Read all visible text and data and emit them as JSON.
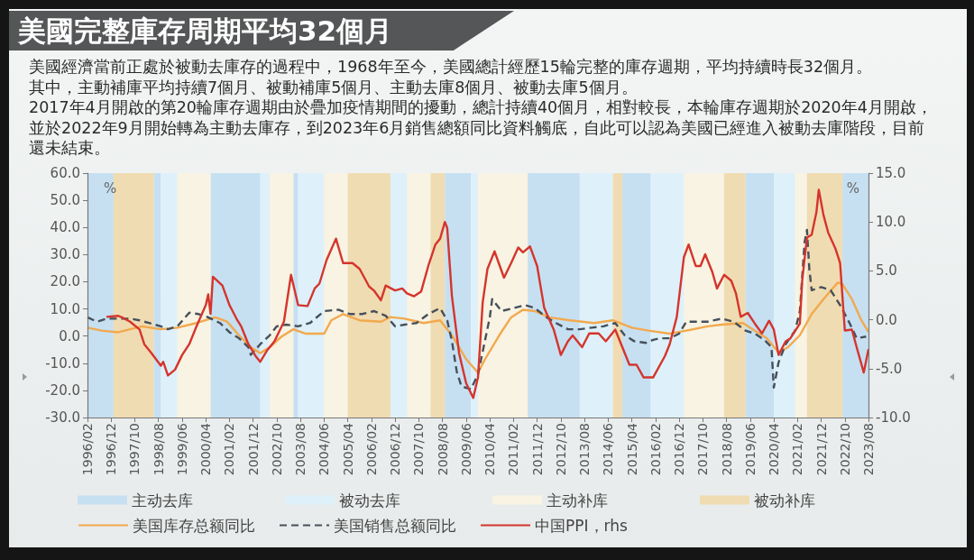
{
  "chart_data": {
    "type": "line",
    "title": "美國完整庫存周期平均32個月",
    "subtitle": "美國經濟當前正處於被動去庫存的過程中，1968年至今，美國總計經歷15輪完整的庫存週期，平均持續時長32個月。",
    "annotations": [
      "其中，主動補庫平均持續7個月、被動補庫5個月、主動去庫8個月、被動去庫5個月。",
      "2017年4月開啟的第20輪庫存週期由於疊加疫情期間的擾動，總計持續40個月，相對較長，本輪庫存週期於2020年4月開啟，並於2022年9月開始轉為主動去庫存，到2023年6月銷售總額同比資料觸底，自此可以認為美國已經進入被動去庫階段，目前還未結束。"
    ],
    "ylabel": "%",
    "y2label": "%",
    "xlim": [
      "1996-02",
      "2023-08"
    ],
    "xticks": [
      {
        "value": "1996-02",
        "label": "1996/02"
      },
      {
        "value": "1996-12",
        "label": "1996/12"
      },
      {
        "value": "1997-10",
        "label": "1997/10"
      },
      {
        "value": "1998-08",
        "label": "1998/08"
      },
      {
        "value": "1999-06",
        "label": "1999/06"
      },
      {
        "value": "2000-04",
        "label": "2000/04"
      },
      {
        "value": "2001-02",
        "label": "2001/02"
      },
      {
        "value": "2001-12",
        "label": "2001/12"
      },
      {
        "value": "2002-10",
        "label": "2002/10"
      },
      {
        "value": "2003-08",
        "label": "2003/08"
      },
      {
        "value": "2004-06",
        "label": "2004/06"
      },
      {
        "value": "2005-04",
        "label": "2005/04"
      },
      {
        "value": "2006-02",
        "label": "2006/02"
      },
      {
        "value": "2006-12",
        "label": "2006/12"
      },
      {
        "value": "2007-10",
        "label": "2007/10"
      },
      {
        "value": "2008-08",
        "label": "2008/08"
      },
      {
        "value": "2009-06",
        "label": "2009/06"
      },
      {
        "value": "2010-04",
        "label": "2010/04"
      },
      {
        "value": "2011-02",
        "label": "2011/02"
      },
      {
        "value": "2011-12",
        "label": "2011/12"
      },
      {
        "value": "2012-10",
        "label": "2012/10"
      },
      {
        "value": "2013-08",
        "label": "2013/08"
      },
      {
        "value": "2014-06",
        "label": "2014/06"
      },
      {
        "value": "2015-04",
        "label": "2015/04"
      },
      {
        "value": "2016-02",
        "label": "2016/02"
      },
      {
        "value": "2016-12",
        "label": "2016/12"
      },
      {
        "value": "2017-10",
        "label": "2017/10"
      },
      {
        "value": "2018-08",
        "label": "2018/08"
      },
      {
        "value": "2019-06",
        "label": "2019/06"
      },
      {
        "value": "2020-04",
        "label": "2020/04"
      },
      {
        "value": "2021-02",
        "label": "2021/02"
      },
      {
        "value": "2021-12",
        "label": "2021/12"
      },
      {
        "value": "2022-10",
        "label": "2022/10"
      },
      {
        "value": "2023-08",
        "label": "2023/08"
      }
    ],
    "ylim": [
      -30,
      60
    ],
    "yticks": [
      {
        "value": -30,
        "label": "-30.0"
      },
      {
        "value": -20,
        "label": "-20.0"
      },
      {
        "value": -10,
        "label": "-10.0"
      },
      {
        "value": 0,
        "label": "0.0"
      },
      {
        "value": 10,
        "label": "10.0"
      },
      {
        "value": 20,
        "label": "20.0"
      },
      {
        "value": 30,
        "label": "30.0"
      },
      {
        "value": 40,
        "label": "40.0"
      },
      {
        "value": 50,
        "label": "50.0"
      },
      {
        "value": 60,
        "label": "60.0"
      }
    ],
    "y2lim": [
      -10,
      15
    ],
    "y2ticks": [
      {
        "value": -10,
        "label": "-10.0"
      },
      {
        "value": -5,
        "label": "-5.0"
      },
      {
        "value": 0,
        "label": "0.0"
      },
      {
        "value": 5,
        "label": "5.0"
      },
      {
        "value": 10,
        "label": "10.0"
      },
      {
        "value": 15,
        "label": "15.0"
      }
    ],
    "grid": false,
    "legend": "bottom",
    "bands": [
      {
        "axis": "x",
        "from": "1996-02",
        "to": "1997-01",
        "label": "主动去库",
        "color": "#c6e0f2"
      },
      {
        "axis": "x",
        "from": "1998-06",
        "to": "1998-09",
        "color": "#c6e0f2"
      },
      {
        "axis": "x",
        "from": "2000-06",
        "to": "2002-03",
        "color": "#c6e0f2"
      },
      {
        "axis": "x",
        "from": "2003-05",
        "to": "2003-07",
        "color": "#c6e0f2"
      },
      {
        "axis": "x",
        "from": "2008-09",
        "to": "2009-08",
        "color": "#c6e0f2"
      },
      {
        "axis": "x",
        "from": "2011-08",
        "to": "2013-06",
        "color": "#c6e0f2"
      },
      {
        "axis": "x",
        "from": "2014-12",
        "to": "2015-12",
        "color": "#c6e0f2"
      },
      {
        "axis": "x",
        "from": "2019-04",
        "to": "2020-04",
        "color": "#c6e0f2"
      },
      {
        "axis": "x",
        "from": "2022-09",
        "to": "2023-08",
        "color": "#c6e0f2"
      },
      {
        "axis": "x",
        "from": "1998-09",
        "to": "1999-04",
        "label": "被动去库",
        "color": "#def1fa"
      },
      {
        "axis": "x",
        "from": "2002-03",
        "to": "2002-07",
        "color": "#def1fa"
      },
      {
        "axis": "x",
        "from": "2003-07",
        "to": "2004-06",
        "color": "#def1fa"
      },
      {
        "axis": "x",
        "from": "2006-10",
        "to": "2007-05",
        "color": "#def1fa"
      },
      {
        "axis": "x",
        "from": "2009-08",
        "to": "2009-11",
        "color": "#def1fa"
      },
      {
        "axis": "x",
        "from": "2013-06",
        "to": "2014-08",
        "color": "#def1fa"
      },
      {
        "axis": "x",
        "from": "2015-12",
        "to": "2017-02",
        "color": "#def1fa"
      },
      {
        "axis": "x",
        "from": "2020-04",
        "to": "2021-01",
        "color": "#def1fa"
      },
      {
        "axis": "x",
        "from": "1999-04",
        "to": "2000-06",
        "label": "主动补库",
        "color": "#f8f3e2"
      },
      {
        "axis": "x",
        "from": "2002-07",
        "to": "2003-05",
        "color": "#f8f3e2"
      },
      {
        "axis": "x",
        "from": "2004-06",
        "to": "2005-04",
        "color": "#f8f3e2"
      },
      {
        "axis": "x",
        "from": "2007-05",
        "to": "2008-03",
        "color": "#f8f3e2"
      },
      {
        "axis": "x",
        "from": "2009-11",
        "to": "2011-08",
        "color": "#f8f3e2"
      },
      {
        "axis": "x",
        "from": "2017-02",
        "to": "2018-07",
        "color": "#f8f3e2"
      },
      {
        "axis": "x",
        "from": "2021-01",
        "to": "2021-06",
        "color": "#f8f3e2"
      },
      {
        "axis": "x",
        "from": "1997-01",
        "to": "1998-06",
        "label": "被动补库",
        "color": "#f0dcb2"
      },
      {
        "axis": "x",
        "from": "2005-04",
        "to": "2006-10",
        "color": "#f0dcb2"
      },
      {
        "axis": "x",
        "from": "2008-03",
        "to": "2008-09",
        "color": "#f0dcb2"
      },
      {
        "axis": "x",
        "from": "2014-08",
        "to": "2014-12",
        "color": "#f0dcb2"
      },
      {
        "axis": "x",
        "from": "2018-07",
        "to": "2019-04",
        "color": "#f0dcb2"
      },
      {
        "axis": "x",
        "from": "2021-06",
        "to": "2022-09",
        "color": "#f0dcb2"
      }
    ],
    "series": [
      {
        "name": "美国库存总额同比",
        "color": "#f2a94e",
        "x": [
          "1996-02",
          "1996-08",
          "1997-03",
          "1997-08",
          "1998-01",
          "1998-09",
          "1999-04",
          "1999-12",
          "2000-08",
          "2001-01",
          "2001-06",
          "2001-11",
          "2002-03",
          "2002-07",
          "2002-12",
          "2003-05",
          "2003-10",
          "2004-03",
          "2004-06",
          "2004-09",
          "2005-02",
          "2005-09",
          "2006-06",
          "2006-10",
          "2007-04",
          "2007-12",
          "2008-07",
          "2008-12",
          "2009-06",
          "2009-11",
          "2010-02",
          "2010-08",
          "2011-01",
          "2011-06",
          "2011-11",
          "2012-05",
          "2013-02",
          "2013-12",
          "2014-08",
          "2015-04",
          "2015-11",
          "2016-08",
          "2017-03",
          "2017-12",
          "2018-06",
          "2019-03",
          "2019-08",
          "2020-01",
          "2020-06",
          "2020-10",
          "2021-03",
          "2021-08",
          "2022-01",
          "2022-07",
          "2022-09",
          "2023-01",
          "2023-05",
          "2023-08"
        ],
        "values": [
          3.1,
          2.0,
          1.4,
          2.5,
          3.6,
          2.5,
          3.1,
          4.8,
          6.9,
          5.3,
          0.3,
          -4.1,
          -6.3,
          -4.1,
          -0.2,
          2.5,
          0.9,
          0.9,
          0.9,
          5.8,
          8.1,
          5.8,
          5.3,
          7.0,
          6.4,
          4.8,
          5.8,
          0.3,
          -8.5,
          -13.5,
          -8.5,
          0.3,
          6.9,
          9.7,
          9.2,
          6.9,
          5.8,
          4.8,
          5.8,
          3.1,
          2.0,
          0.9,
          2.0,
          3.6,
          4.2,
          4.8,
          2.0,
          -0.8,
          -6.0,
          -4.1,
          0.3,
          8.1,
          13.6,
          19.7,
          19.1,
          13.6,
          5.8,
          1.5
        ]
      },
      {
        "name": "美国销售总额同比",
        "color": "#46505a",
        "line_style": "dashed",
        "x": [
          "1996-02",
          "1996-06",
          "1996-10",
          "1997-03",
          "1997-08",
          "1997-12",
          "1998-04",
          "1998-09",
          "1998-12",
          "1999-04",
          "1999-09",
          "2000-01",
          "2000-05",
          "2000-10",
          "2001-02",
          "2001-06",
          "2001-10",
          "2001-11",
          "2002-03",
          "2002-07",
          "2002-10",
          "2003-02",
          "2003-07",
          "2003-12",
          "2004-06",
          "2004-12",
          "2005-05",
          "2005-10",
          "2006-03",
          "2006-08",
          "2006-12",
          "2007-04",
          "2007-09",
          "2008-02",
          "2008-07",
          "2008-10",
          "2008-12",
          "2009-02",
          "2009-04",
          "2009-08",
          "2009-11",
          "2010-04",
          "2010-05",
          "2010-09",
          "2011-02",
          "2011-07",
          "2011-11",
          "2012-04",
          "2012-08",
          "2013-01",
          "2013-06",
          "2013-11",
          "2014-04",
          "2014-09",
          "2015-01",
          "2015-05",
          "2015-10",
          "2016-01",
          "2016-04",
          "2016-08",
          "2016-12",
          "2017-03",
          "2017-07",
          "2017-12",
          "2018-06",
          "2018-11",
          "2019-04",
          "2019-08",
          "2019-12",
          "2020-03",
          "2020-04",
          "2020-06",
          "2020-09",
          "2021-01",
          "2021-03",
          "2021-05",
          "2021-06",
          "2021-07",
          "2021-08",
          "2021-12",
          "2022-04",
          "2022-08",
          "2022-12",
          "2023-03",
          "2023-07"
        ],
        "values": [
          6.9,
          5.3,
          6.4,
          6.4,
          6.4,
          5.8,
          4.8,
          3.6,
          2.5,
          3.6,
          8.6,
          8.1,
          6.9,
          4.8,
          1.4,
          -0.8,
          -4.1,
          -6.9,
          -3.0,
          0.3,
          3.6,
          4.2,
          3.6,
          4.8,
          9.2,
          9.7,
          8.1,
          8.1,
          9.2,
          7.5,
          3.6,
          4.2,
          4.8,
          8.1,
          10.3,
          5.8,
          -1.9,
          -13.0,
          -18.5,
          -19.6,
          -14.1,
          6.9,
          13.6,
          9.2,
          10.3,
          11.4,
          10.3,
          6.9,
          4.8,
          2.5,
          2.5,
          3.1,
          3.6,
          4.8,
          0.3,
          -1.9,
          -2.5,
          -1.4,
          -0.8,
          -0.8,
          0.9,
          5.3,
          5.3,
          5.3,
          6.4,
          5.3,
          2.0,
          0.9,
          -1.4,
          -4.1,
          -19.0,
          -9.7,
          -3.0,
          2.0,
          9.2,
          34.6,
          39.1,
          24.7,
          16.9,
          18.0,
          16.9,
          11.4,
          4.8,
          -0.8,
          -0.2
        ]
      },
      {
        "name": "中国PPI，rhs",
        "color": "#d4352d",
        "axis": "y2",
        "x": [
          "1996-10",
          "1997-03",
          "1997-05",
          "1997-08",
          "1997-12",
          "1998-02",
          "1998-05",
          "1998-09",
          "1998-10",
          "1998-12",
          "1999-03",
          "1999-06",
          "1999-09",
          "1999-12",
          "2000-04",
          "2000-05",
          "2000-06",
          "2000-07",
          "2000-11",
          "2001-02",
          "2001-05",
          "2001-07",
          "2001-10",
          "2002-01",
          "2002-03",
          "2002-06",
          "2002-09",
          "2003-01",
          "2003-04",
          "2003-07",
          "2003-11",
          "2004-02",
          "2004-04",
          "2004-07",
          "2004-11",
          "2005-02",
          "2005-06",
          "2005-09",
          "2006-01",
          "2006-03",
          "2006-06",
          "2006-08",
          "2006-12",
          "2007-03",
          "2007-05",
          "2007-08",
          "2007-11",
          "2008-02",
          "2008-05",
          "2008-07",
          "2008-09",
          "2008-10",
          "2008-12",
          "2009-03",
          "2009-06",
          "2009-09",
          "2009-11",
          "2010-01",
          "2010-03",
          "2010-06",
          "2010-10",
          "2011-01",
          "2011-04",
          "2011-06",
          "2011-09",
          "2011-12",
          "2012-03",
          "2012-07",
          "2012-10",
          "2013-01",
          "2013-03",
          "2013-07",
          "2013-10",
          "2014-02",
          "2014-05",
          "2014-09",
          "2014-12",
          "2015-03",
          "2015-06",
          "2015-09",
          "2016-01",
          "2016-06",
          "2016-08",
          "2016-11",
          "2017-02",
          "2017-04",
          "2017-07",
          "2017-09",
          "2017-11",
          "2018-02",
          "2018-04",
          "2018-07",
          "2018-10",
          "2018-12",
          "2019-02",
          "2019-05",
          "2019-08",
          "2019-11",
          "2020-02",
          "2020-04",
          "2020-06",
          "2020-09",
          "2020-11",
          "2021-03",
          "2021-04",
          "2021-06",
          "2021-08",
          "2021-10",
          "2021-11",
          "2022-01",
          "2022-03",
          "2022-06",
          "2022-08",
          "2022-09",
          "2022-10",
          "2023-01",
          "2023-03",
          "2023-06",
          "2023-08"
        ],
        "values": [
          0.3,
          0.4,
          0.2,
          -0.2,
          -1.0,
          -2.5,
          -3.4,
          -4.7,
          -4.3,
          -5.7,
          -5.1,
          -3.6,
          -2.5,
          -0.7,
          1.5,
          2.6,
          0.6,
          4.4,
          3.5,
          1.5,
          0.1,
          -0.7,
          -2.5,
          -3.7,
          -4.3,
          -3.1,
          -2.2,
          -0.2,
          4.6,
          1.5,
          1.4,
          3.2,
          3.7,
          6.1,
          8.3,
          5.8,
          5.8,
          5.2,
          3.4,
          3.0,
          2.0,
          3.5,
          3.0,
          3.2,
          2.7,
          2.4,
          2.9,
          5.5,
          7.7,
          8.3,
          10.0,
          9.4,
          2.4,
          -3.4,
          -6.5,
          -8.0,
          -5.9,
          1.8,
          5.2,
          7.0,
          4.3,
          5.8,
          7.4,
          6.9,
          7.5,
          5.5,
          1.2,
          -1.0,
          -3.6,
          -2.2,
          -1.6,
          -2.8,
          -1.4,
          -1.4,
          -2.2,
          -1.0,
          -2.8,
          -4.6,
          -4.6,
          -5.9,
          -5.9,
          -3.7,
          -2.5,
          0.3,
          6.4,
          7.7,
          5.5,
          5.5,
          6.7,
          4.9,
          3.2,
          4.6,
          4.0,
          2.7,
          0.3,
          0.7,
          -0.4,
          -1.4,
          -0.1,
          -1.0,
          -3.6,
          -2.2,
          -1.9,
          -0.4,
          4.0,
          8.4,
          8.7,
          11.0,
          13.3,
          10.7,
          8.9,
          7.3,
          5.8,
          2.4,
          -1.1,
          -1.0,
          -2.8,
          -5.4,
          -3.0
        ]
      }
    ]
  }
}
